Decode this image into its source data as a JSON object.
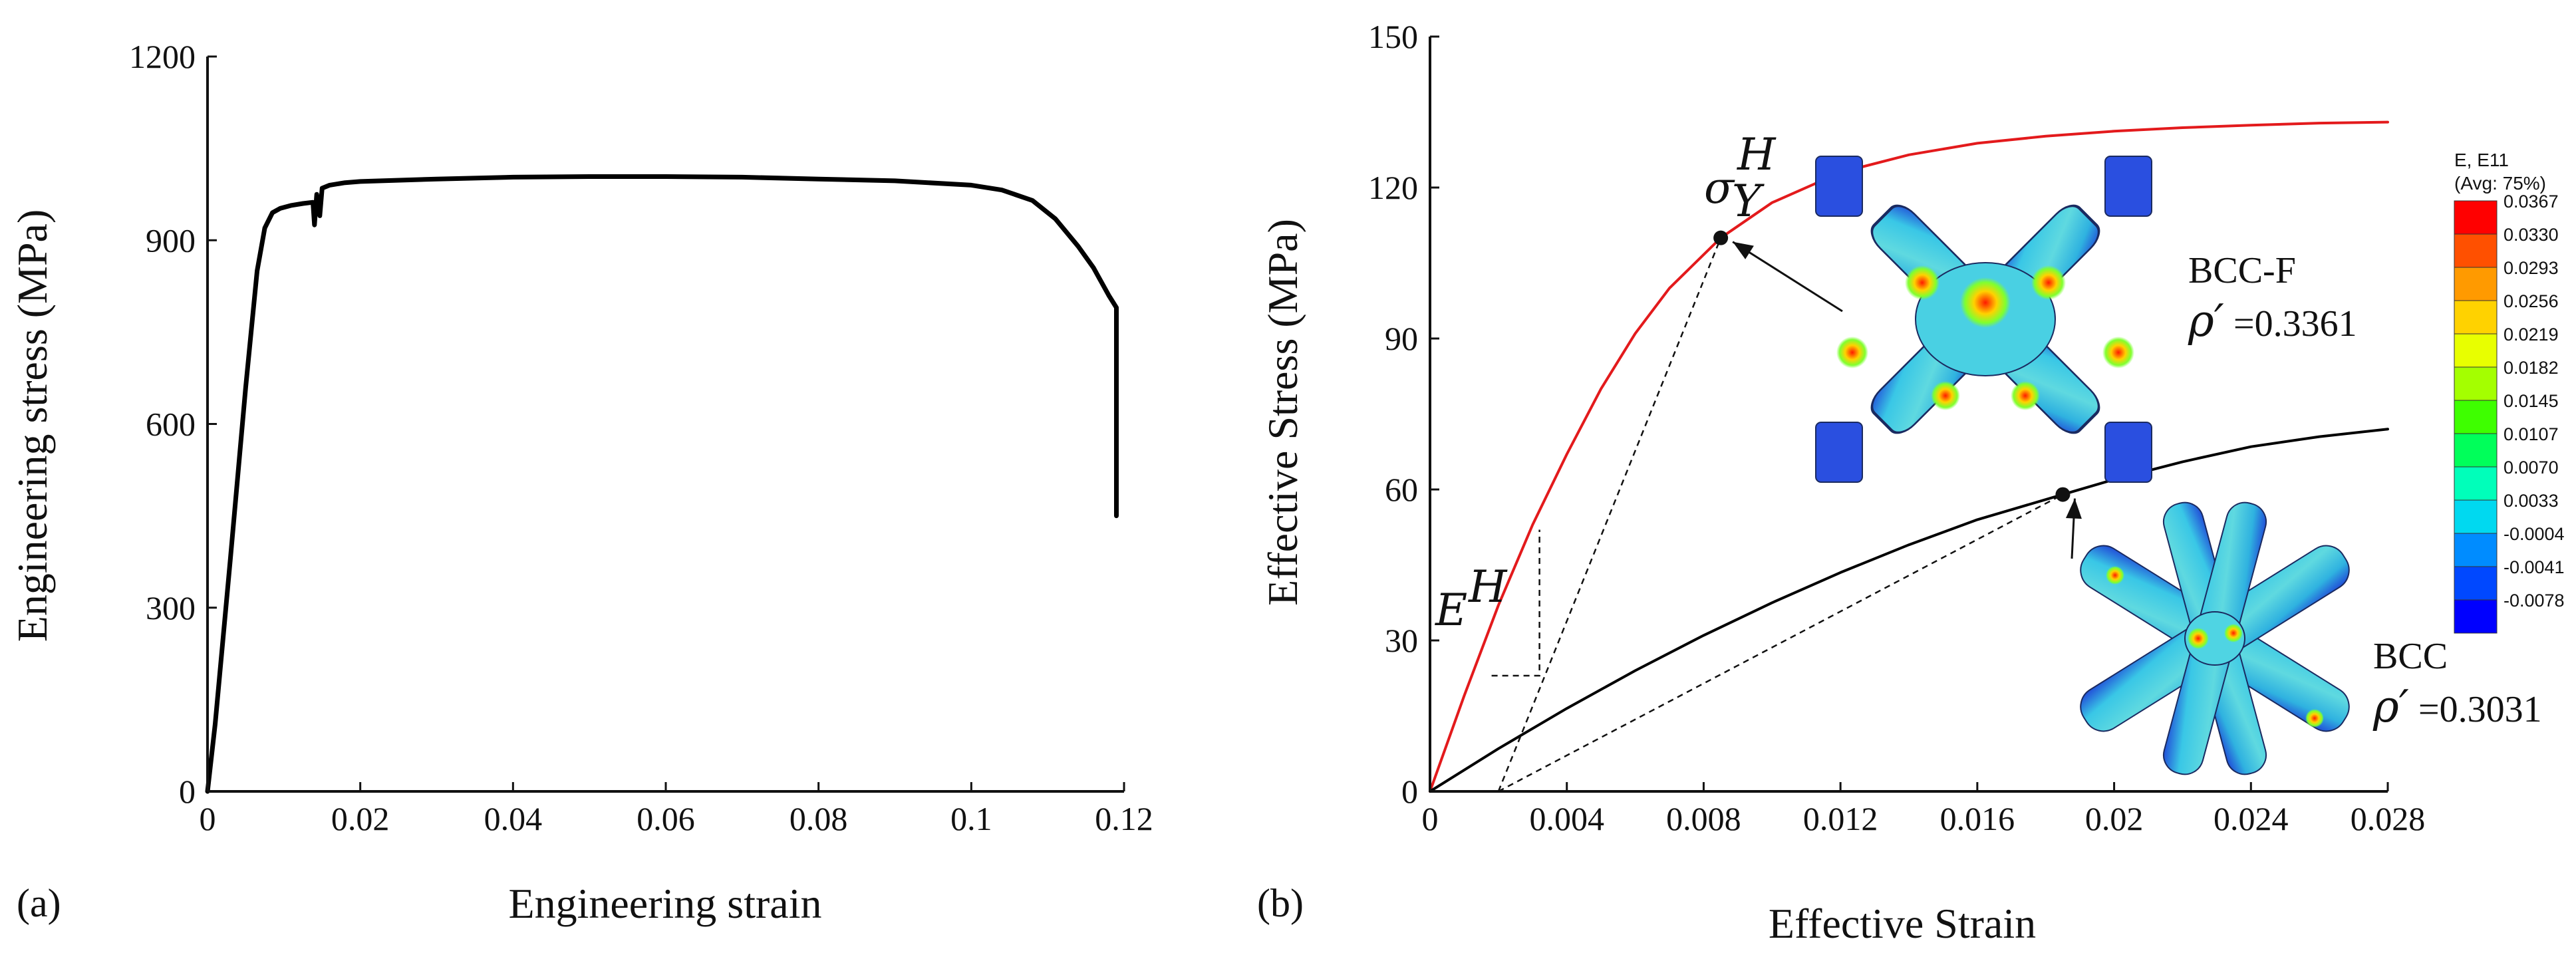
{
  "chart_data": [
    {
      "id": "a",
      "type": "line",
      "panel_label": "(a)",
      "xlabel": "Engineering strain",
      "ylabel": "Engineering stress (MPa)",
      "xlim": [
        0,
        0.12
      ],
      "ylim": [
        0,
        1200
      ],
      "xticks": [
        0,
        0.02,
        0.04,
        0.06,
        0.08,
        0.1,
        0.12
      ],
      "xtick_labels": [
        "0",
        "0.02",
        "0.04",
        "0.06",
        "0.08",
        "0.1",
        "0.12"
      ],
      "yticks": [
        0,
        300,
        600,
        900,
        1200
      ],
      "ytick_labels": [
        "0",
        "300",
        "600",
        "900",
        "1200"
      ],
      "series": [
        {
          "name": "engineering stress-strain",
          "color": "#000000",
          "x": [
            0,
            0.001,
            0.003,
            0.005,
            0.0065,
            0.0075,
            0.0085,
            0.0095,
            0.011,
            0.0125,
            0.0138,
            0.014,
            0.0143,
            0.0147,
            0.015,
            0.016,
            0.018,
            0.02,
            0.03,
            0.04,
            0.05,
            0.06,
            0.07,
            0.08,
            0.09,
            0.1,
            0.104,
            0.108,
            0.111,
            0.114,
            0.116,
            0.118,
            0.119,
            0.119
          ],
          "y": [
            0,
            110,
            380,
            660,
            850,
            920,
            945,
            952,
            957,
            960,
            962,
            925,
            975,
            940,
            985,
            990,
            994,
            996,
            1000,
            1003,
            1004,
            1004,
            1003,
            1000,
            997,
            990,
            982,
            965,
            935,
            890,
            855,
            810,
            790,
            450
          ]
        }
      ]
    },
    {
      "id": "b",
      "type": "line",
      "panel_label": "(b)",
      "xlabel": "Effective Strain",
      "ylabel": "Effective Stress (MPa)",
      "xlim": [
        0,
        0.028
      ],
      "ylim": [
        0,
        150
      ],
      "xticks": [
        0,
        0.004,
        0.008,
        0.012,
        0.016,
        0.02,
        0.024,
        0.028
      ],
      "xtick_labels": [
        "0",
        "0.004",
        "0.008",
        "0.012",
        "0.016",
        "0.02",
        "0.024",
        "0.028"
      ],
      "yticks": [
        0,
        30,
        60,
        90,
        120,
        150
      ],
      "ytick_labels": [
        "0",
        "30",
        "60",
        "90",
        "120",
        "150"
      ],
      "series": [
        {
          "name": "BCC-F",
          "color": "#e31a1c",
          "x": [
            0,
            0.001,
            0.002,
            0.003,
            0.004,
            0.005,
            0.006,
            0.007,
            0.0085,
            0.01,
            0.012,
            0.014,
            0.016,
            0.018,
            0.02,
            0.022,
            0.024,
            0.026,
            0.028
          ],
          "y": [
            0,
            19,
            37,
            53,
            67,
            80,
            91,
            100,
            110,
            117,
            123,
            126.5,
            128.8,
            130.2,
            131.2,
            131.9,
            132.4,
            132.8,
            133
          ]
        },
        {
          "name": "BCC",
          "color": "#000000",
          "x": [
            0,
            0.002,
            0.004,
            0.006,
            0.008,
            0.01,
            0.012,
            0.014,
            0.016,
            0.0185,
            0.02,
            0.022,
            0.024,
            0.026,
            0.028
          ],
          "y": [
            0,
            8.5,
            16.5,
            24,
            31,
            37.5,
            43.5,
            49,
            54,
            59,
            62,
            65.5,
            68.5,
            70.5,
            72
          ]
        }
      ],
      "annotations": {
        "sigma_y_label": "σ",
        "sigma_y_sup": "H",
        "sigma_y_sub": "Y",
        "sigma_y_point": [
          0.0085,
          110
        ],
        "modulus_label": "E",
        "modulus_sup": "H",
        "modulus_triangle": [
          [
            0.0018,
            23
          ],
          [
            0.0032,
            23
          ],
          [
            0.0032,
            52
          ]
        ],
        "bcc_point": [
          0.0185,
          59
        ],
        "offset_line_bccf": [
          [
            0.002,
            0
          ],
          [
            0.0085,
            110
          ]
        ],
        "offset_line_bcc": [
          [
            0.002,
            0
          ],
          [
            0.0185,
            59
          ]
        ],
        "bccf_name": "BCC-F",
        "bccf_rho_symbol": "ρ′",
        "bccf_rho_value": "=0.3361",
        "bcc_name": "BCC",
        "bcc_rho_symbol": "ρ′",
        "bcc_rho_value": "=0.3031"
      },
      "colorbar": {
        "title_line1": "E, E11",
        "title_line2": "(Avg: 75%)",
        "labels": [
          "0.0367",
          "0.0330",
          "0.0293",
          "0.0256",
          "0.0219",
          "0.0182",
          "0.0145",
          "0.0107",
          "0.0070",
          "0.0033",
          "-0.0004",
          "-0.0041",
          "-0.0078"
        ],
        "colors": [
          "#ff0000",
          "#ff5000",
          "#ff9a00",
          "#ffd200",
          "#e8ff00",
          "#a4ff00",
          "#3eff00",
          "#00ff5a",
          "#00ffba",
          "#00d9f0",
          "#008cff",
          "#0048ff",
          "#0000ff"
        ]
      }
    }
  ]
}
